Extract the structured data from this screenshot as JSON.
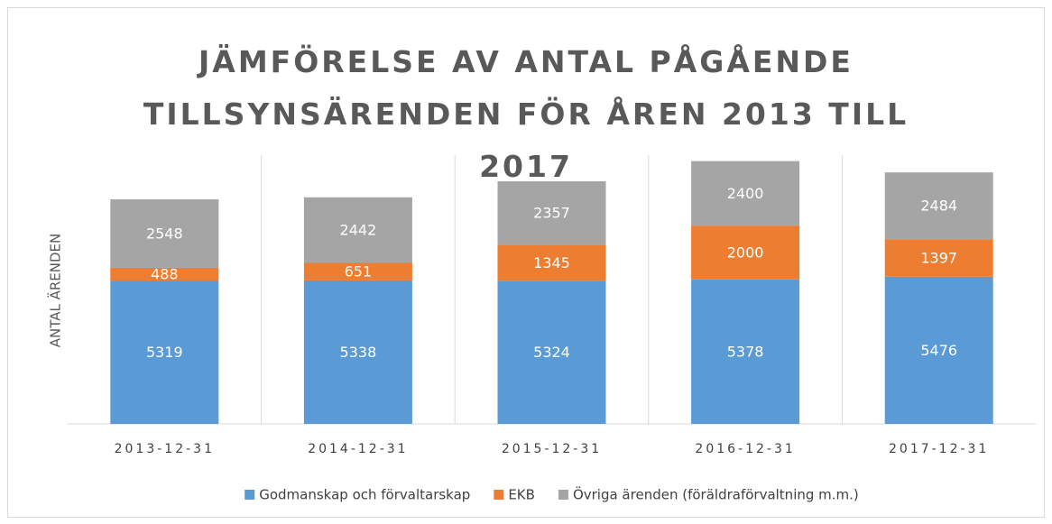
{
  "chart_data": {
    "type": "stacked_bar",
    "title": "JÄMFÖRELSE AV ANTAL PÅGÅENDE TILLSYNSÄRENDEN FÖR ÅREN 2013 TILL 2017",
    "y_label": "ANTAL ÄRENDEN",
    "categories": [
      "2013-12-31",
      "2014-12-31",
      "2015-12-31",
      "2016-12-31",
      "2017-12-31"
    ],
    "series": [
      {
        "name": "Godmanskap och förvaltarskap",
        "color": "#5b9bd5",
        "values": [
          5319,
          5338,
          5324,
          5378,
          5476
        ]
      },
      {
        "name": "EKB",
        "color": "#ed7d31",
        "values": [
          488,
          651,
          1345,
          2000,
          1397
        ]
      },
      {
        "name": "Övriga ärenden (föräldraförvaltning m.m.)",
        "color": "#a5a5a5",
        "values": [
          2548,
          2442,
          2357,
          2400,
          2484
        ]
      }
    ],
    "ylim": [
      0,
      10000
    ],
    "legend": "bottom"
  }
}
